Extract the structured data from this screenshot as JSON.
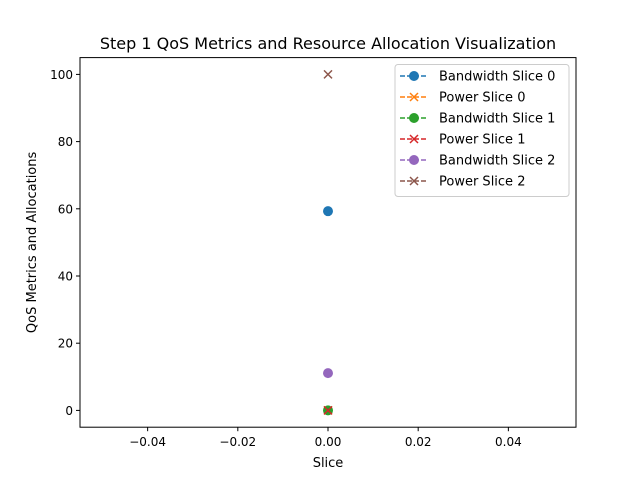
{
  "chart_data": {
    "type": "line",
    "title": "Step 1 QoS Metrics and Resource Allocation Visualization",
    "xlabel": "Slice",
    "ylabel": "QoS Metrics and Allocations",
    "xlim": [
      -0.055,
      0.055
    ],
    "ylim": [
      -5,
      105
    ],
    "x_ticks": [
      -0.04,
      -0.02,
      0.0,
      0.02,
      0.04
    ],
    "x_tick_labels": [
      "−0.04",
      "−0.02",
      "0.00",
      "0.02",
      "0.04"
    ],
    "y_ticks": [
      0,
      20,
      40,
      60,
      80,
      100
    ],
    "y_tick_labels": [
      "0",
      "20",
      "40",
      "60",
      "80",
      "100"
    ],
    "grid": false,
    "legend_position": "top-right",
    "series": [
      {
        "name": "Bandwidth Slice 0",
        "color": "#1f77b4",
        "marker": "circle",
        "linestyle": "dashed",
        "x": [
          0
        ],
        "y": [
          59.3
        ]
      },
      {
        "name": "Power Slice 0",
        "color": "#ff7f0e",
        "marker": "x",
        "linestyle": "dashed",
        "x": [
          0
        ],
        "y": [
          0
        ]
      },
      {
        "name": "Bandwidth Slice 1",
        "color": "#2ca02c",
        "marker": "circle",
        "linestyle": "dashed",
        "x": [
          0
        ],
        "y": [
          0
        ]
      },
      {
        "name": "Power Slice 1",
        "color": "#d62728",
        "marker": "x",
        "linestyle": "dashed",
        "x": [
          0
        ],
        "y": [
          0
        ]
      },
      {
        "name": "Bandwidth Slice 2",
        "color": "#9467bd",
        "marker": "circle",
        "linestyle": "dashed",
        "x": [
          0
        ],
        "y": [
          11.1
        ]
      },
      {
        "name": "Power Slice 2",
        "color": "#8c564b",
        "marker": "x",
        "linestyle": "dashed",
        "x": [
          0
        ],
        "y": [
          100
        ]
      }
    ]
  }
}
